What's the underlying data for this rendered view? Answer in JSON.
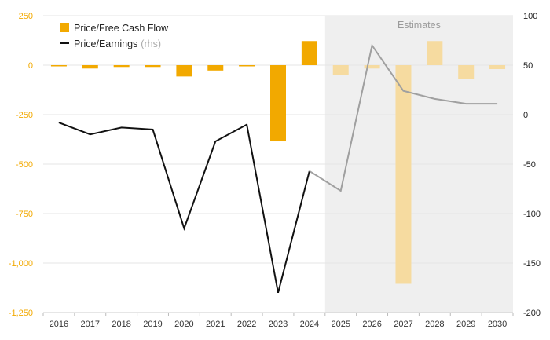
{
  "chart_data": {
    "type": "bar",
    "categories": [
      "2016",
      "2017",
      "2018",
      "2019",
      "2020",
      "2021",
      "2022",
      "2023",
      "2024",
      "2025",
      "2026",
      "2027",
      "2028",
      "2029",
      "2030"
    ],
    "estimates_from": "2025",
    "estimates_label": "Estimates",
    "series": [
      {
        "name": "Price/Free Cash Flow",
        "axis": "left",
        "kind": "bar",
        "values": [
          -5,
          -17,
          -9,
          -9,
          -57,
          -27,
          -5,
          -385,
          122,
          -50,
          -17,
          -1105,
          122,
          -70,
          -20
        ]
      },
      {
        "name": "Price/Earnings",
        "name_suffix": "(rhs)",
        "axis": "right",
        "kind": "line",
        "values": [
          -8,
          -20,
          -13,
          -15,
          -115,
          -27,
          -10,
          -180,
          -57,
          -77,
          70,
          24,
          16,
          11,
          11
        ]
      }
    ],
    "y_left": {
      "ylim": [
        -1250,
        250
      ],
      "ticks": [
        "250",
        "0",
        "-250",
        "-500",
        "-750",
        "-1,000",
        "-1,250"
      ],
      "tick_values": [
        250,
        0,
        -250,
        -500,
        -750,
        -1000,
        -1250
      ]
    },
    "y_right": {
      "ylim": [
        -200,
        100
      ],
      "ticks": [
        "100",
        "50",
        "0",
        "-50",
        "-100",
        "-150",
        "-200"
      ],
      "tick_values": [
        100,
        50,
        0,
        -50,
        -100,
        -150,
        -200
      ]
    },
    "legend_placement": "top-left",
    "grid": true,
    "colors": {
      "bar": "#f2a900",
      "bar_estimate": "#f6dba0",
      "line": "#111111",
      "line_estimate": "#a0a0a0",
      "estimate_band": "#efefef",
      "grid": "#e6e6e6",
      "left_axis_text": "#f2a900"
    }
  }
}
